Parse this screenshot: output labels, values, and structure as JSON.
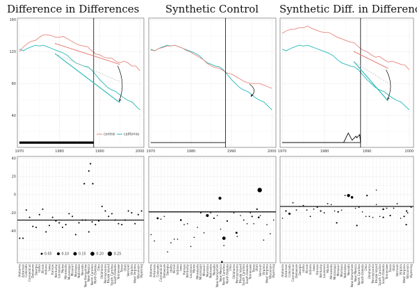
{
  "titles": [
    "Difference in Differences",
    "Synthetic Control",
    "Synthetic Diff. in Differences"
  ],
  "colors": {
    "control": "#e8847a",
    "california": "#20b7b7",
    "panel_border": "#555555",
    "grid": "#ebebeb"
  },
  "chart_data": [
    {
      "type": "line",
      "panels": [
        "Difference in Differences",
        "Synthetic Control",
        "Synthetic Diff. in Differences"
      ],
      "x_ticks": [
        1970,
        1980,
        1990,
        2000
      ],
      "y_ticks": [
        40,
        80,
        120,
        160
      ],
      "xlim": [
        1969.5,
        2001
      ],
      "ylim": [
        0,
        162
      ],
      "treatment_year": 1988.5,
      "legend": [
        "control",
        "california"
      ],
      "years": [
        1970,
        1971,
        1972,
        1973,
        1974,
        1975,
        1976,
        1977,
        1978,
        1979,
        1980,
        1981,
        1982,
        1983,
        1984,
        1985,
        1986,
        1987,
        1988,
        1989,
        1990,
        1991,
        1992,
        1993,
        1994,
        1995,
        1996,
        1997,
        1998,
        1999,
        2000
      ],
      "series": [
        {
          "panel": 0,
          "name": "california",
          "values": [
            123,
            121,
            124,
            126,
            128,
            127,
            128,
            126,
            124,
            122,
            120,
            118,
            115,
            110,
            106,
            104,
            102,
            101,
            97,
            91,
            85,
            80,
            75,
            72,
            70,
            66,
            62,
            59,
            57,
            52,
            47
          ]
        },
        {
          "panel": 0,
          "name": "control",
          "values": [
            120,
            126,
            130,
            133,
            134,
            138,
            141,
            141,
            140,
            138,
            138,
            139,
            136,
            133,
            130,
            128,
            127,
            126,
            121,
            117,
            116,
            113,
            112,
            112,
            108,
            106,
            108,
            106,
            102,
            102,
            96
          ]
        },
        {
          "panel": 1,
          "name": "california",
          "values": [
            123,
            121,
            124,
            126,
            128,
            127,
            128,
            126,
            124,
            122,
            120,
            118,
            115,
            110,
            106,
            104,
            102,
            101,
            97,
            91,
            85,
            80,
            75,
            72,
            70,
            66,
            62,
            59,
            57,
            52,
            47
          ]
        },
        {
          "panel": 1,
          "name": "control",
          "values": [
            122,
            121,
            124,
            125,
            127,
            127,
            128,
            126,
            124,
            121,
            119,
            116,
            113,
            110,
            105,
            102,
            100,
            99,
            96,
            93,
            92,
            89,
            86,
            83,
            81,
            80,
            80,
            80,
            78,
            76,
            74
          ]
        },
        {
          "panel": 2,
          "name": "california",
          "values": [
            123,
            121,
            124,
            126,
            128,
            127,
            128,
            126,
            124,
            122,
            120,
            118,
            115,
            110,
            106,
            104,
            102,
            101,
            97,
            91,
            85,
            80,
            75,
            72,
            70,
            66,
            62,
            59,
            57,
            52,
            47
          ]
        },
        {
          "panel": 2,
          "name": "control",
          "values": [
            143,
            146,
            148,
            148,
            150,
            150,
            152,
            149,
            147,
            145,
            144,
            144,
            141,
            138,
            136,
            134,
            132,
            131,
            126,
            122,
            120,
            116,
            113,
            114,
            110,
            107,
            108,
            106,
            104,
            103,
            97
          ]
        }
      ],
      "arrows": [
        {
          "panel": 0,
          "pre": [
            1979,
            130,
            117
          ],
          "post": [
            1995,
            104,
            56
          ]
        },
        {
          "panel": 1,
          "pre": null,
          "post": [
            1995,
            81,
            62
          ]
        },
        {
          "panel": 2,
          "pre": [
            1987,
            120,
            107
          ],
          "post": [
            1995,
            99,
            58
          ]
        }
      ],
      "weights_panel": [
        0,
        1,
        2
      ]
    },
    {
      "type": "scatter",
      "states": [
        "Alabama",
        "Arkansas",
        "Colorado",
        "Connecticut",
        "Delaware",
        "Georgia",
        "Idaho",
        "Illinois",
        "Indiana",
        "Iowa",
        "Kansas",
        "Kentucky",
        "Louisiana",
        "Maine",
        "Minnesota",
        "Mississippi",
        "Missouri",
        "Montana",
        "Nebraska",
        "Nevada",
        "New Hampshire",
        "New Mexico",
        "North Carolina",
        "North Dakota",
        "Ohio",
        "Oklahoma",
        "Pennsylvania",
        "Rhode Island",
        "South Carolina",
        "South Dakota",
        "Tennessee",
        "Texas",
        "Utah",
        "Vermont",
        "Virginia",
        "West Virginia",
        "Wisconsin",
        "Wyoming"
      ],
      "y_ticks": [
        -40,
        -20,
        0,
        20,
        40
      ],
      "ylim": [
        -75,
        42
      ],
      "legend_title": "",
      "legend_sizes": [
        "0.05",
        "0.10",
        "0.15",
        "0.20",
        "0.25"
      ],
      "panels": [
        {
          "name": "Difference in Differences",
          "mean": -28,
          "values": [
            -48,
            -48,
            -17,
            -25,
            -35,
            -36,
            -22,
            -16,
            -41,
            -34,
            -25,
            -29,
            -31,
            -36,
            -33,
            -21,
            -24,
            -44,
            -31,
            -28,
            -28,
            -41,
            -30,
            -33,
            -29,
            -13,
            -18,
            -24,
            -21,
            -28,
            -32,
            -33,
            -28,
            -18,
            -20,
            -32,
            -22,
            -18
          ],
          "weights": [
            0.026,
            0.026,
            0.026,
            0.026,
            0.026,
            0.026,
            0.026,
            0.026,
            0.026,
            0.026,
            0.026,
            0.026,
            0.026,
            0.026,
            0.026,
            0.026,
            0.026,
            0.026,
            0.026,
            0.026,
            0.026,
            0.026,
            0.026,
            0.026,
            0.026,
            0.026,
            0.026,
            0.026,
            0.026,
            0.026,
            0.026,
            0.026,
            0.026,
            0.026,
            0.026,
            0.026,
            0.026,
            0.026
          ],
          "extra_points": [
            [
              21.5,
              34,
              0.03
            ],
            [
              21.0,
              26,
              0.03
            ],
            [
              19.6,
              12,
              0.03
            ],
            [
              22.2,
              12,
              0.03
            ]
          ]
        },
        {
          "name": "Synthetic Control",
          "mean": -19,
          "values": [
            -44,
            -51,
            -26,
            -27,
            -24,
            -63,
            -53,
            -49,
            -49,
            -28,
            -33,
            -32,
            -57,
            -47,
            -36,
            -20,
            -42,
            -23,
            -20,
            -26,
            -23,
            -38,
            -56,
            -29,
            -19,
            -20,
            -46,
            -23,
            -28,
            -32,
            -20,
            -32,
            -16,
            -23,
            -50,
            -33,
            -43,
            -28
          ],
          "weights": [
            0.002,
            0.01,
            0.05,
            0.01,
            0.005,
            0.002,
            0.005,
            0.005,
            0.005,
            0.04,
            0.01,
            0.01,
            0.005,
            0.005,
            0.01,
            0.02,
            0.005,
            0.1,
            0.01,
            0.03,
            0.01,
            0.01,
            0.005,
            0.03,
            0.01,
            0.01,
            0.005,
            0.005,
            0.02,
            0.005,
            0.01,
            0.005,
            0.03,
            0.005,
            0.005,
            0.005,
            0.005,
            0.005
          ],
          "extra_points": [
            [
              20.8,
              -4,
              0.11
            ],
            [
              22.0,
              -48,
              0.14
            ],
            [
              21.4,
              -74,
              0.04
            ],
            [
              30.5,
              -24,
              0.03
            ],
            [
              32.5,
              -25,
              0.04
            ],
            [
              32.8,
              5,
              0.25
            ],
            [
              25.8,
              -42,
              0.05
            ]
          ]
        },
        {
          "name": "Synthetic Diff. in Differences",
          "mean": -13,
          "values": [
            -26,
            -18,
            -21,
            -9,
            -17,
            -13,
            -12,
            -17,
            -24,
            -16,
            -14,
            -18,
            -20,
            -10,
            -11,
            -18,
            -19,
            -17,
            -1,
            -1,
            -3,
            -15,
            -14,
            -19,
            -24,
            -24,
            -25,
            -11,
            -24,
            -16,
            -15,
            -23,
            -15,
            -10,
            -26,
            -24,
            -20,
            -14
          ],
          "weights": [
            0.005,
            0.03,
            0.06,
            0.02,
            0.02,
            0.005,
            0.02,
            0.02,
            0.02,
            0.02,
            0.02,
            0.03,
            0.02,
            0.02,
            0.005,
            0.01,
            0.03,
            0.005,
            0.02,
            0.12,
            0.08,
            0.005,
            0.01,
            0.005,
            0.01,
            0.02,
            0.005,
            0.01,
            0.01,
            0.04,
            0.02,
            0.03,
            0.02,
            0.02,
            0.005,
            0.03,
            0.02,
            0.005
          ],
          "extra_points": [
            [
              15.6,
              -31,
              0.03
            ],
            [
              21.4,
              -34,
              0.03
            ],
            [
              24.3,
              -1,
              0.03
            ],
            [
              29.0,
              -25,
              0.03
            ],
            [
              35.7,
              -18,
              0.03
            ],
            [
              35.6,
              -33,
              0.03
            ],
            [
              27.0,
              5,
              0.005
            ]
          ]
        }
      ]
    }
  ]
}
